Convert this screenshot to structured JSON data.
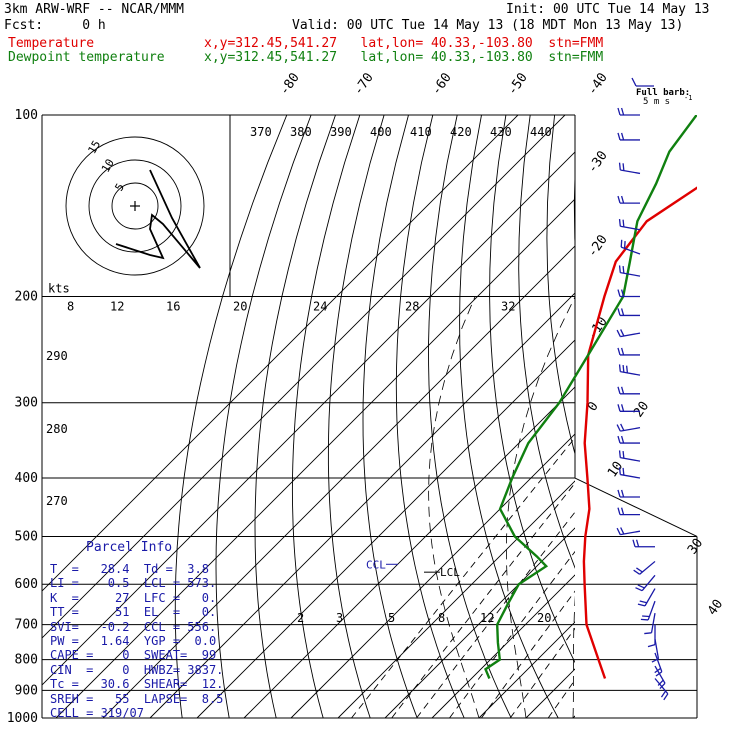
{
  "header": {
    "model": "3km ARW-WRF -- NCAR/MMM",
    "init": "Init: 00 UTC Tue 14 May 13",
    "fcst": "Fcst:     0 h",
    "valid": "Valid: 00 UTC Tue 14 May 13 (18 MDT Mon 13 May 13)",
    "temp_label": "Temperature",
    "temp_loc": "x,y=312.45,541.27   lat,lon= 40.33,-103.80  stn=FMM",
    "dew_label": "Dewpoint temperature",
    "dew_loc": "x,y=312.45,541.27   lat,lon= 40.33,-103.80  stn=FMM",
    "barb_legend_1": "Full barb:",
    "barb_legend_2": "5 m s",
    "barb_legend_sup": "-1"
  },
  "colors": {
    "temperature": "#e00000",
    "dewpoint": "#108010",
    "wind": "#1a1aa8",
    "parcel_text": "#1a1aa8",
    "grid": "#000000"
  },
  "chart_data": {
    "type": "line",
    "chart_kind": "skew-T log-P sounding",
    "y_scale": "log pressure",
    "y_unit": "hPa",
    "ylim": [
      1000,
      100
    ],
    "pressure_ticks": [
      "100",
      "200",
      "300",
      "400",
      "500",
      "600",
      "700",
      "800",
      "900",
      "1000"
    ],
    "isotherm_labels": [
      "-80",
      "-70",
      "-60",
      "-50",
      "-40",
      "-30",
      "-20",
      "-10",
      "0",
      "10",
      "20",
      "30",
      "40"
    ],
    "theta_labels": [
      "370",
      "380",
      "390",
      "400",
      "410",
      "420",
      "430",
      "440"
    ],
    "dry_adiabat_labels": [
      "290",
      "280",
      "270"
    ],
    "mixing_ratio_labels": [
      "2",
      "3",
      "5",
      "8",
      "12",
      "20"
    ],
    "lcl_label": "LCL",
    "ccl_label": "CCL",
    "series": [
      {
        "name": "Temperature",
        "unit": "C",
        "p": [
          860,
          800,
          700,
          600,
          550,
          500,
          450,
          400,
          350,
          300,
          250,
          200,
          175,
          150,
          130,
          115,
          100
        ],
        "t": [
          28.4,
          23,
          13,
          4,
          -1,
          -6,
          -11,
          -18,
          -26,
          -34,
          -44,
          -53,
          -58,
          -60,
          -56,
          -50,
          -46
        ]
      },
      {
        "name": "Dewpoint temperature",
        "unit": "C",
        "p": [
          860,
          830,
          800,
          750,
          700,
          650,
          600,
          560,
          540,
          500,
          450,
          400,
          350,
          300,
          250,
          200,
          175,
          150,
          130,
          115,
          100
        ],
        "t": [
          3.8,
          1,
          2,
          -2,
          -6,
          -8,
          -10,
          -8,
          -12,
          -21,
          -30,
          -34,
          -38,
          -40,
          -44,
          -49,
          -55,
          -62,
          -66,
          -70,
          -72
        ]
      }
    ],
    "hodograph": {
      "units": "kts",
      "ring_labels": [
        "5",
        "10",
        "15"
      ],
      "trace_kts": [
        [
          -4,
          -8
        ],
        [
          -2,
          -9
        ],
        [
          5,
          -11
        ],
        [
          3,
          -6
        ],
        [
          5,
          -2
        ],
        [
          6,
          4
        ],
        [
          9,
          -9
        ]
      ]
    },
    "wind_barbs": {
      "p": [
        100,
        110,
        125,
        140,
        155,
        170,
        185,
        200,
        215,
        230,
        250,
        270,
        290,
        310,
        330,
        350,
        375,
        400,
        430,
        460,
        490,
        520,
        550,
        580,
        610,
        640,
        670,
        700,
        740,
        780,
        820,
        860
      ],
      "dir_deg": [
        270,
        270,
        280,
        270,
        280,
        290,
        280,
        270,
        270,
        260,
        270,
        280,
        270,
        270,
        260,
        270,
        280,
        280,
        270,
        270,
        260,
        270,
        230,
        220,
        210,
        200,
        190,
        180,
        170,
        160,
        150,
        140
      ],
      "speed_ms": [
        10,
        10,
        10,
        10,
        10,
        10,
        10,
        10,
        10,
        10,
        10,
        15,
        10,
        10,
        10,
        10,
        10,
        10,
        10,
        10,
        10,
        10,
        10,
        10,
        10,
        10,
        5,
        5,
        5,
        10,
        10,
        10
      ]
    }
  },
  "parcel": {
    "title": "Parcel Info",
    "lines": [
      "T  =   28.4  Td =  3.8",
      "LI =    0.5  LCL = 573.",
      "K  =     27  LFC =   0.",
      "TT =     51  EL  =   0.",
      "SVI=   -0.2  CCL = 556.",
      "PW =   1.64  YGP =  0.0",
      "CAPE =    0  SWEAT=  99",
      "CIN  =    0  HWBZ= 3837.",
      "Tc =   30.6  SHEAR=  12.",
      "SREH =   55  LAPSE=  8.5",
      "CELL = 319/07"
    ]
  }
}
